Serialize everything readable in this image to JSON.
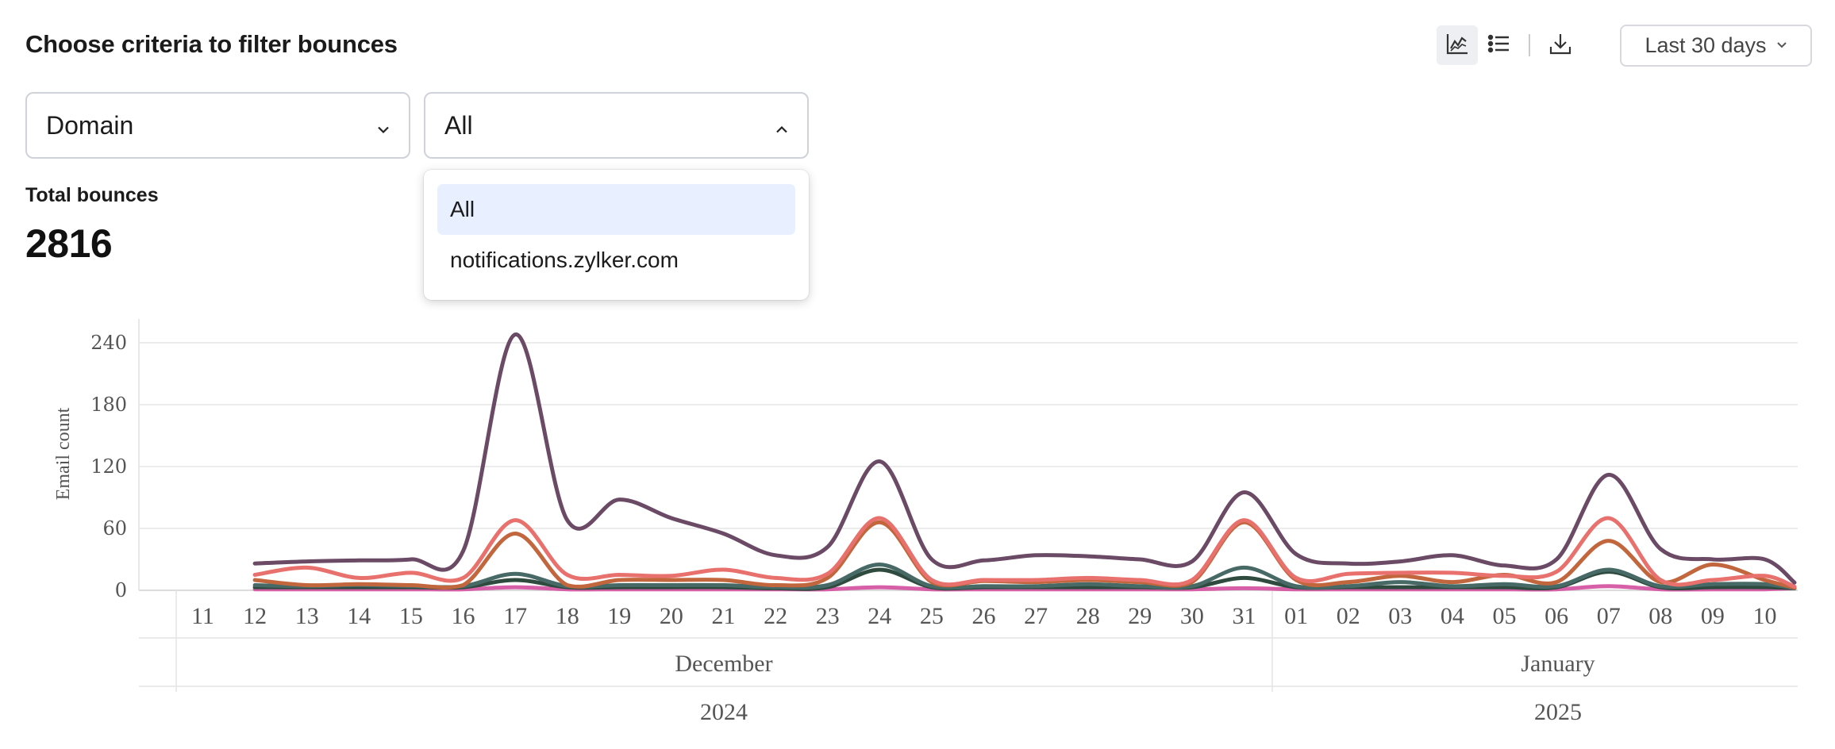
{
  "header": {
    "title": "Choose criteria to filter bounces"
  },
  "toolbar": {
    "date_range": "Last 30 days"
  },
  "filters": {
    "criteria_value": "Domain",
    "domain_value": "All",
    "dropdown_options": [
      "All",
      "notifications.zylker.com"
    ]
  },
  "summary": {
    "total_label": "Total bounces",
    "total_value": "2816"
  },
  "chart_data": {
    "type": "line",
    "ylabel": "Email count",
    "ylim": [
      0,
      260
    ],
    "yticks": [
      0,
      60,
      120,
      180,
      240
    ],
    "x": [
      "11",
      "12",
      "13",
      "14",
      "15",
      "16",
      "17",
      "18",
      "19",
      "20",
      "21",
      "22",
      "23",
      "24",
      "25",
      "26",
      "27",
      "28",
      "29",
      "30",
      "31",
      "01",
      "02",
      "03",
      "04",
      "05",
      "06",
      "07",
      "08",
      "09",
      "10"
    ],
    "month_groups": [
      {
        "label": "December",
        "year": "2024"
      },
      {
        "label": "January",
        "year": "2025"
      }
    ],
    "series": [
      {
        "color": "#6b4a66",
        "values": [
          null,
          26,
          28,
          29,
          30,
          38,
          248,
          68,
          88,
          70,
          55,
          34,
          42,
          125,
          30,
          29,
          34,
          33,
          30,
          28,
          95,
          35,
          26,
          28,
          34,
          24,
          30,
          112,
          40,
          30,
          30
        ]
      },
      {
        "color": "#e8716d",
        "values": [
          null,
          15,
          22,
          12,
          17,
          12,
          68,
          15,
          15,
          14,
          20,
          12,
          16,
          70,
          10,
          10,
          10,
          12,
          10,
          10,
          68,
          12,
          16,
          17,
          17,
          14,
          18,
          70,
          10,
          10,
          14
        ]
      },
      {
        "color": "#c2663e",
        "values": [
          null,
          10,
          5,
          6,
          5,
          5,
          55,
          5,
          10,
          10,
          10,
          5,
          12,
          66,
          8,
          9,
          8,
          10,
          8,
          8,
          66,
          10,
          8,
          14,
          8,
          15,
          8,
          48,
          8,
          25,
          10
        ]
      },
      {
        "color": "#486a66",
        "values": [
          null,
          5,
          4,
          5,
          4,
          4,
          16,
          4,
          5,
          5,
          5,
          3,
          5,
          25,
          4,
          4,
          4,
          6,
          4,
          4,
          22,
          4,
          4,
          8,
          4,
          6,
          4,
          20,
          4,
          6,
          6
        ]
      },
      {
        "color": "#2f4a3e",
        "values": [
          null,
          3,
          3,
          3,
          3,
          3,
          10,
          3,
          3,
          3,
          3,
          2,
          3,
          20,
          3,
          3,
          3,
          3,
          3,
          3,
          12,
          3,
          3,
          3,
          3,
          3,
          3,
          18,
          3,
          3,
          3
        ]
      },
      {
        "color": "#d65fa8",
        "values": [
          null,
          1,
          1,
          1,
          1,
          1,
          3,
          1,
          1,
          1,
          1,
          1,
          1,
          3,
          1,
          1,
          1,
          1,
          1,
          1,
          2,
          1,
          1,
          1,
          1,
          1,
          1,
          4,
          1,
          1,
          1
        ]
      }
    ]
  }
}
